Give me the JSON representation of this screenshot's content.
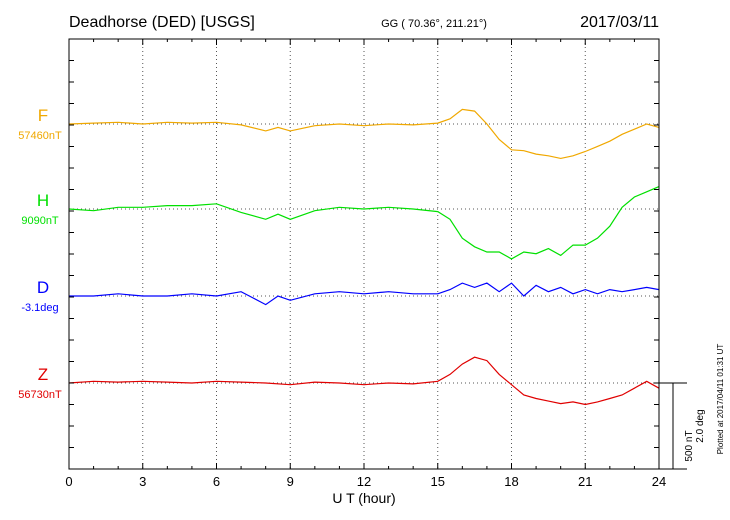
{
  "header": {
    "station": "Deadhorse (DED)  [USGS]",
    "coords": "GG ( 70.36°, 211.21°)",
    "date": "2017/03/11"
  },
  "footer": {
    "plotted": "Plotted at 2017/04/11 01:31  UT"
  },
  "scale": {
    "nt": "500 nT",
    "deg": "2.0 deg"
  },
  "chart_data": {
    "type": "line",
    "xlabel": "U T (hour)",
    "xlim": [
      0,
      24
    ],
    "xticks": [
      "0",
      "3",
      "6",
      "9",
      "12",
      "15",
      "18",
      "21",
      "24"
    ],
    "grid": "dotted",
    "series": [
      {
        "name": "F",
        "baseline_label": "57460nT",
        "color": "#f0a800",
        "x": [
          0,
          1,
          2,
          3,
          4,
          5,
          6,
          7,
          8,
          8.5,
          9,
          10,
          11,
          12,
          13,
          14,
          15,
          15.5,
          16,
          16.5,
          17,
          17.5,
          18,
          18.5,
          19,
          19.5,
          20,
          20.5,
          21,
          21.5,
          22,
          22.5,
          23,
          23.5,
          24
        ],
        "y": [
          57460,
          57465,
          57470,
          57460,
          57470,
          57465,
          57470,
          57455,
          57420,
          57440,
          57420,
          57450,
          57460,
          57450,
          57460,
          57455,
          57465,
          57490,
          57545,
          57535,
          57460,
          57370,
          57310,
          57305,
          57285,
          57275,
          57260,
          57275,
          57300,
          57330,
          57360,
          57400,
          57430,
          57460,
          57440
        ]
      },
      {
        "name": "H",
        "baseline_label": "9090nT",
        "color": "#00e000",
        "x": [
          0,
          1,
          2,
          3,
          4,
          5,
          6,
          7,
          8,
          8.5,
          9,
          10,
          11,
          12,
          13,
          14,
          15,
          15.5,
          16,
          16.5,
          17,
          17.5,
          18,
          18.5,
          19,
          19.5,
          20,
          20.5,
          21,
          21.5,
          22,
          22.5,
          23,
          23.5,
          24
        ],
        "y": [
          9090,
          9080,
          9100,
          9100,
          9110,
          9110,
          9120,
          9070,
          9030,
          9060,
          9030,
          9080,
          9100,
          9090,
          9100,
          9090,
          9075,
          9030,
          8920,
          8870,
          8840,
          8840,
          8800,
          8840,
          8830,
          8860,
          8820,
          8880,
          8880,
          8920,
          8990,
          9100,
          9160,
          9190,
          9220
        ]
      },
      {
        "name": "D",
        "baseline_label": "-3.1deg",
        "color": "#0000ff",
        "x": [
          0,
          1,
          2,
          3,
          4,
          5,
          6,
          7,
          7.5,
          8,
          8.5,
          9,
          10,
          11,
          12,
          13,
          14,
          15,
          15.5,
          16,
          16.5,
          17,
          17.5,
          18,
          18.5,
          19,
          19.5,
          20,
          20.5,
          21,
          21.5,
          22,
          22.5,
          23,
          23.5,
          24
        ],
        "y": [
          -3.1,
          -3.1,
          -3.05,
          -3.1,
          -3.1,
          -3.05,
          -3.1,
          -3.0,
          -3.15,
          -3.3,
          -3.1,
          -3.2,
          -3.05,
          -3.0,
          -3.05,
          -3.0,
          -3.05,
          -3.05,
          -2.95,
          -2.8,
          -2.9,
          -2.8,
          -3.0,
          -2.8,
          -3.1,
          -2.85,
          -3.0,
          -2.9,
          -3.05,
          -2.95,
          -3.05,
          -2.95,
          -3.0,
          -2.95,
          -2.9,
          -2.95
        ]
      },
      {
        "name": "Z",
        "baseline_label": "56730nT",
        "color": "#e00000",
        "x": [
          0,
          1,
          2,
          3,
          4,
          5,
          6,
          7,
          8,
          9,
          10,
          11,
          12,
          13,
          14,
          15,
          15.5,
          16,
          16.5,
          17,
          17.5,
          18,
          18.5,
          19,
          19.5,
          20,
          20.5,
          21,
          21.5,
          22,
          22.5,
          23,
          23.5,
          24
        ],
        "y": [
          56730,
          56740,
          56735,
          56740,
          56735,
          56730,
          56740,
          56735,
          56730,
          56720,
          56735,
          56730,
          56720,
          56730,
          56725,
          56740,
          56780,
          56840,
          56880,
          56860,
          56780,
          56720,
          56660,
          56640,
          56625,
          56610,
          56620,
          56605,
          56620,
          56640,
          56660,
          56700,
          56740,
          56700
        ]
      }
    ]
  }
}
